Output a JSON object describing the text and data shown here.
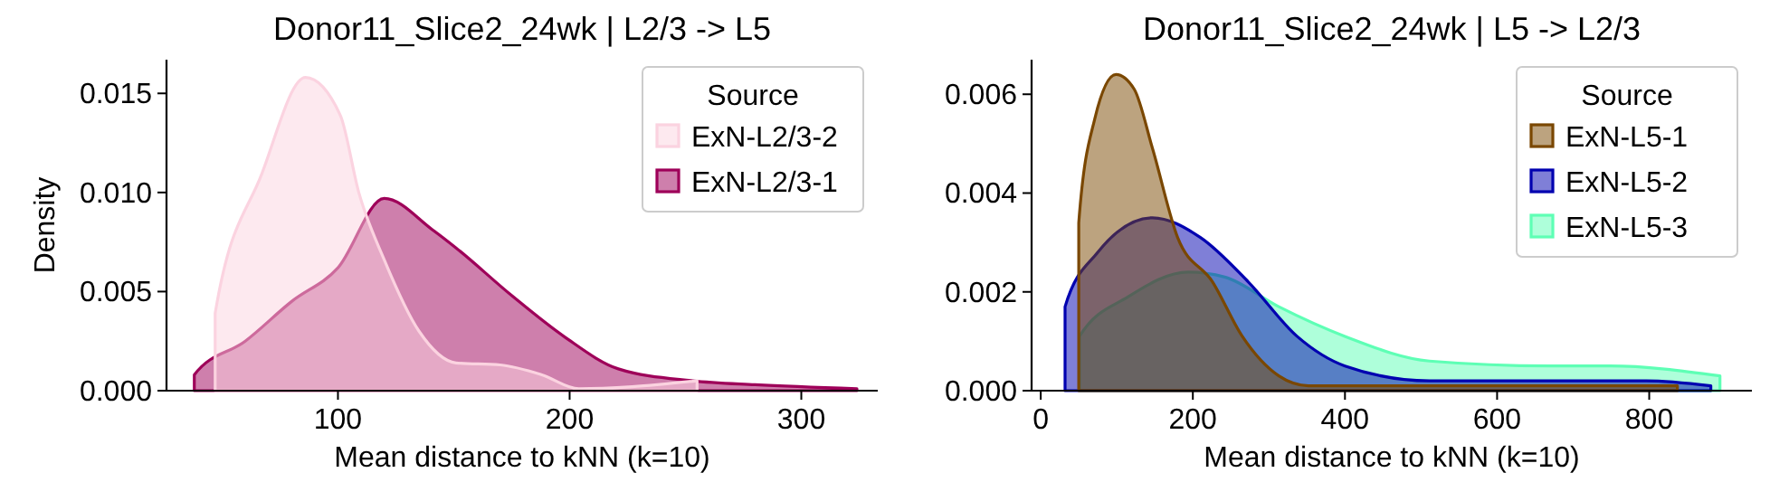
{
  "chart_data": [
    {
      "type": "area",
      "title": "Donor11_Slice2_24wk | L2/3 -> L5",
      "xlabel": "Mean distance to kNN (k=10)",
      "ylabel": "Density",
      "legend_title": "Source",
      "legend": "top right",
      "grid": false,
      "xlim": [
        26,
        333
      ],
      "ylim": [
        0,
        0.0167
      ],
      "xticks": [
        100,
        200,
        300
      ],
      "yticks": [
        {
          "value": 0,
          "label": "0.000"
        },
        {
          "value": 0.005,
          "label": "0.005"
        },
        {
          "value": 0.01,
          "label": "0.010"
        },
        {
          "value": 0.015,
          "label": "0.015"
        }
      ],
      "series": [
        {
          "name": "ExN-L2/3-2",
          "color": "#fbd3e0",
          "x": [
            47,
            47,
            67,
            86,
            101,
            109,
            120,
            135,
            151,
            170,
            188,
            204,
            227,
            255
          ],
          "values": [
            0,
            0.0039,
            0.0109,
            0.0158,
            0.0139,
            0.01,
            0.0066,
            0.003,
            0.0014,
            0.0013,
            0.0008,
            0.0001,
            0.0002,
            0.0005
          ]
        },
        {
          "name": "ExN-L2/3-1",
          "color": "#9e0059",
          "x": [
            38,
            38,
            60,
            80,
            100,
            120,
            141,
            151,
            175,
            198,
            221,
            253,
            280,
            324
          ],
          "values": [
            0,
            0.0008,
            0.0025,
            0.0045,
            0.0062,
            0.0097,
            0.0081,
            0.0072,
            0.0048,
            0.0027,
            0.0011,
            0.0005,
            0.0003,
            0.0001
          ]
        }
      ]
    },
    {
      "type": "area",
      "title": "Donor11_Slice2_24wk | L5 -> L2/3",
      "xlabel": "Mean distance to kNN (k=10)",
      "legend_title": "Source",
      "legend": "top right",
      "grid": false,
      "xlim": [
        -12,
        935
      ],
      "ylim": [
        0,
        0.0067
      ],
      "xticks": [
        0,
        200,
        400,
        600,
        800
      ],
      "yticks": [
        {
          "value": 0,
          "label": "0.000"
        },
        {
          "value": 0.002,
          "label": "0.002"
        },
        {
          "value": 0.004,
          "label": "0.004"
        },
        {
          "value": 0.006,
          "label": "0.006"
        }
      ],
      "series": [
        {
          "name": "ExN-L5-1",
          "color": "#7a4700",
          "x": [
            50,
            50,
            71,
            99,
            123,
            147,
            180,
            226,
            265,
            313,
            352,
            471,
            590,
            837
          ],
          "values": [
            0,
            0.0034,
            0.0055,
            0.0064,
            0.0061,
            0.0049,
            0.0031,
            0.0022,
            0.0011,
            0.0003,
            0.0001,
            0.0001,
            0.0001,
            0.0001
          ]
        },
        {
          "name": "ExN-L5-2",
          "color": "#0000b0",
          "x": [
            32,
            32,
            75,
            147,
            210,
            273,
            337,
            400,
            511,
            669,
            796,
            881
          ],
          "values": [
            0,
            0.0017,
            0.0028,
            0.0035,
            0.0031,
            0.0022,
            0.0011,
            0.0005,
            0.0002,
            0.0002,
            0.0002,
            0.0001
          ]
        },
        {
          "name": "ExN-L5-3",
          "color": "#5effb5",
          "x": [
            51,
            51,
            115,
            194,
            242,
            313,
            400,
            511,
            669,
            748,
            893
          ],
          "values": [
            0,
            0.0011,
            0.0019,
            0.0024,
            0.0023,
            0.0017,
            0.0011,
            0.0006,
            0.0005,
            0.0005,
            0.0003
          ]
        }
      ]
    }
  ]
}
